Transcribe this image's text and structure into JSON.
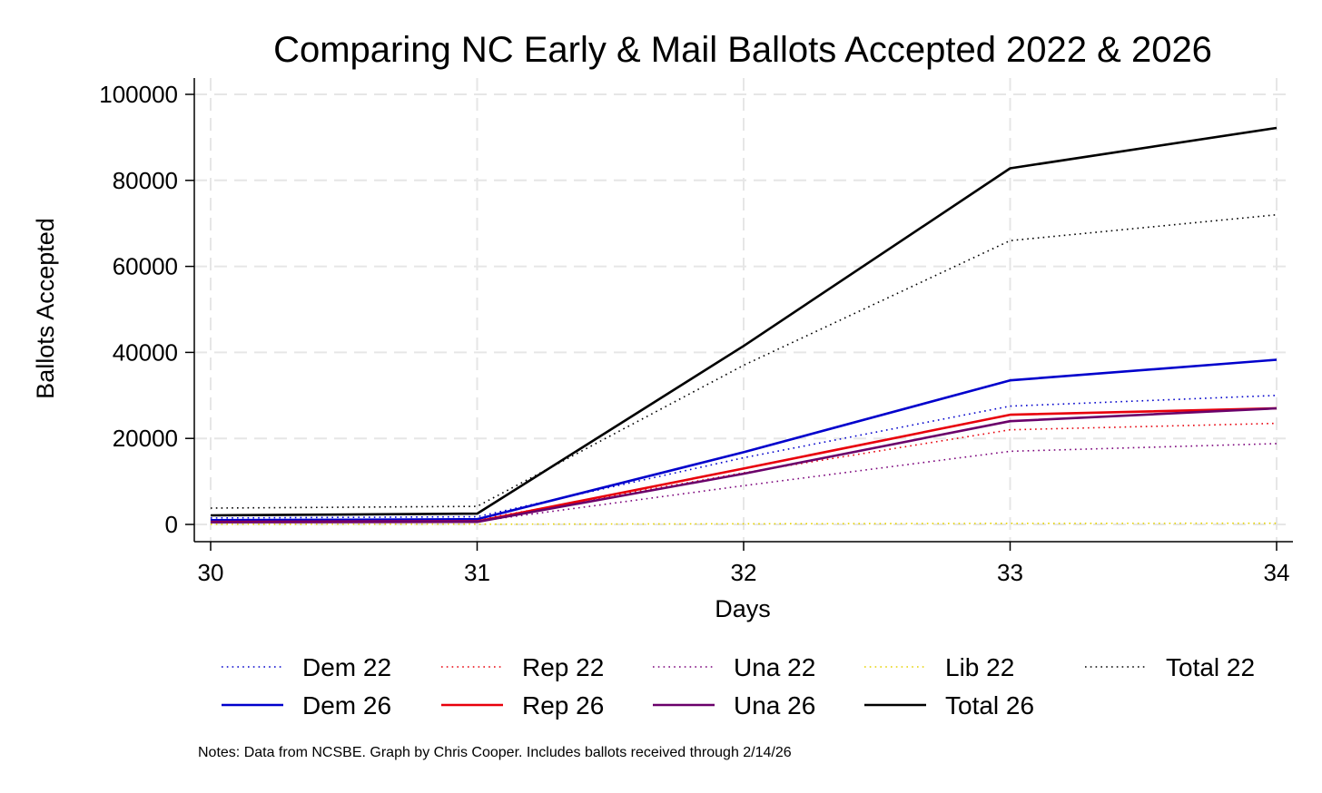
{
  "chart_data": {
    "type": "line",
    "title": "Comparing NC Early & Mail Ballots Accepted 2022 & 2026",
    "xlabel": "Days",
    "ylabel": "Ballots Accepted",
    "x": [
      30,
      31,
      32,
      33,
      34
    ],
    "xticks": [
      "30",
      "31",
      "32",
      "33",
      "34"
    ],
    "yticks": [
      "0",
      "20000",
      "40000",
      "60000",
      "80000",
      "100000"
    ],
    "ylim": [
      0,
      100000
    ],
    "grid": true,
    "series": [
      {
        "name": "Dem 22",
        "color": "#0000cc",
        "style": "dotted",
        "values": [
          1500,
          1800,
          15500,
          27500,
          30000
        ]
      },
      {
        "name": "Rep 22",
        "color": "#e8000b",
        "style": "dotted",
        "values": [
          1000,
          1100,
          12000,
          22000,
          23500
        ]
      },
      {
        "name": "Una 22",
        "color": "#7a007a",
        "style": "dotted",
        "values": [
          600,
          700,
          9000,
          17000,
          18800
        ]
      },
      {
        "name": "Lib 22",
        "color": "#e6d200",
        "style": "dotted",
        "values": [
          50,
          60,
          150,
          250,
          280
        ]
      },
      {
        "name": "Total 22",
        "color": "#000000",
        "style": "dotted",
        "values": [
          3800,
          4200,
          37000,
          66000,
          72000
        ]
      },
      {
        "name": "Dem 26",
        "color": "#0000cc",
        "style": "solid",
        "values": [
          1000,
          1200,
          16800,
          33500,
          38300
        ]
      },
      {
        "name": "Rep 26",
        "color": "#e8000b",
        "style": "solid",
        "values": [
          600,
          700,
          13000,
          25500,
          27000
        ]
      },
      {
        "name": "Una 26",
        "color": "#6a006a",
        "style": "solid",
        "values": [
          500,
          600,
          11800,
          24000,
          27000
        ]
      },
      {
        "name": "Total 26",
        "color": "#000000",
        "style": "solid",
        "values": [
          2100,
          2500,
          41500,
          82800,
          92200
        ]
      }
    ],
    "legend": {
      "placement": "bottom",
      "rows": [
        [
          "Dem 22",
          "Rep 22",
          "Una 22",
          "Lib 22",
          "Total 22"
        ],
        [
          "Dem 26",
          "Rep 26",
          "Una 26",
          "Total 26"
        ]
      ]
    },
    "note": "Notes: Data from NCSBE. Graph by Chris Cooper. Includes ballots received through 2/14/26"
  }
}
